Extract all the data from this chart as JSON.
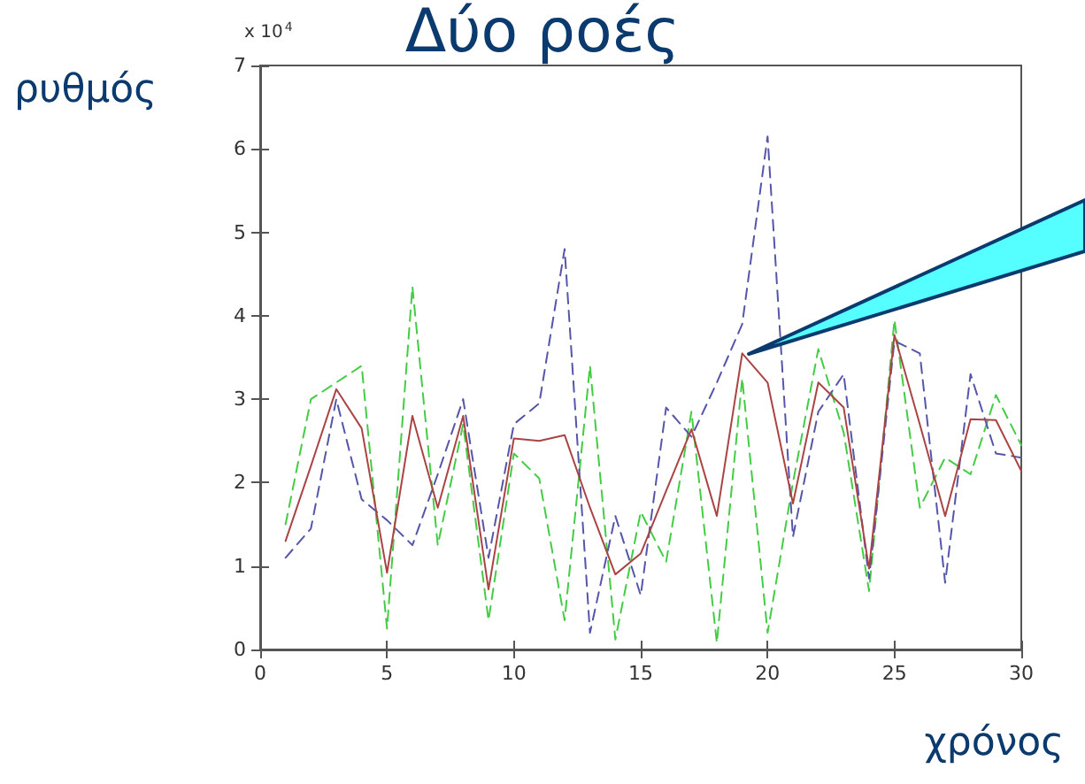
{
  "chart_data": {
    "type": "line",
    "title": "Δύο ροές",
    "ylabel": "ρυθμός",
    "xlabel": "χρόνος",
    "annotations": [
      "x 10$^{4}$"
    ],
    "x": [
      1,
      2,
      3,
      4,
      5,
      6,
      7,
      8,
      9,
      10,
      11,
      12,
      13,
      14,
      15,
      16,
      17,
      18,
      19,
      20,
      21,
      22,
      23,
      24,
      25,
      26,
      27,
      28,
      29,
      30
    ],
    "xlim": [
      0,
      30
    ],
    "xticks": [
      0,
      5,
      10,
      15,
      20,
      25,
      30
    ],
    "ylim": [
      0,
      7
    ],
    "yticks": [
      0,
      1,
      2,
      3,
      4,
      5,
      6,
      7
    ],
    "grid": false,
    "marker": "none",
    "series": [
      {
        "color": "#44cc44",
        "line_style": "dashed",
        "values": [
          1.5,
          3.0,
          3.2,
          3.4,
          0.25,
          4.35,
          1.25,
          2.7,
          0.35,
          2.35,
          2.05,
          0.35,
          3.4,
          0.12,
          1.65,
          1.05,
          2.85,
          0.08,
          3.25,
          0.2,
          2.0,
          3.6,
          2.6,
          0.7,
          3.95,
          1.7,
          2.3,
          2.1,
          3.05,
          2.45
        ]
      },
      {
        "color": "#5555aa",
        "line_style": "dashed",
        "values": [
          1.1,
          1.45,
          3.0,
          1.8,
          1.55,
          1.25,
          2.1,
          3.0,
          1.1,
          2.7,
          2.95,
          4.8,
          0.2,
          1.6,
          0.65,
          2.9,
          2.55,
          3.2,
          3.9,
          6.15,
          1.35,
          2.85,
          3.3,
          0.85,
          3.7,
          3.55,
          0.8,
          3.3,
          2.35,
          2.3
        ]
      },
      {
        "color": "#aa4444",
        "line_style": "solid",
        "values": [
          1.3,
          2.2,
          3.12,
          2.65,
          0.92,
          2.8,
          1.7,
          2.8,
          0.72,
          2.53,
          2.5,
          2.57,
          1.7,
          0.9,
          1.15,
          1.9,
          2.64,
          1.6,
          3.55,
          3.2,
          1.75,
          3.2,
          2.9,
          0.97,
          3.77,
          2.7,
          1.6,
          2.76,
          2.75,
          2.14
        ]
      }
    ]
  }
}
